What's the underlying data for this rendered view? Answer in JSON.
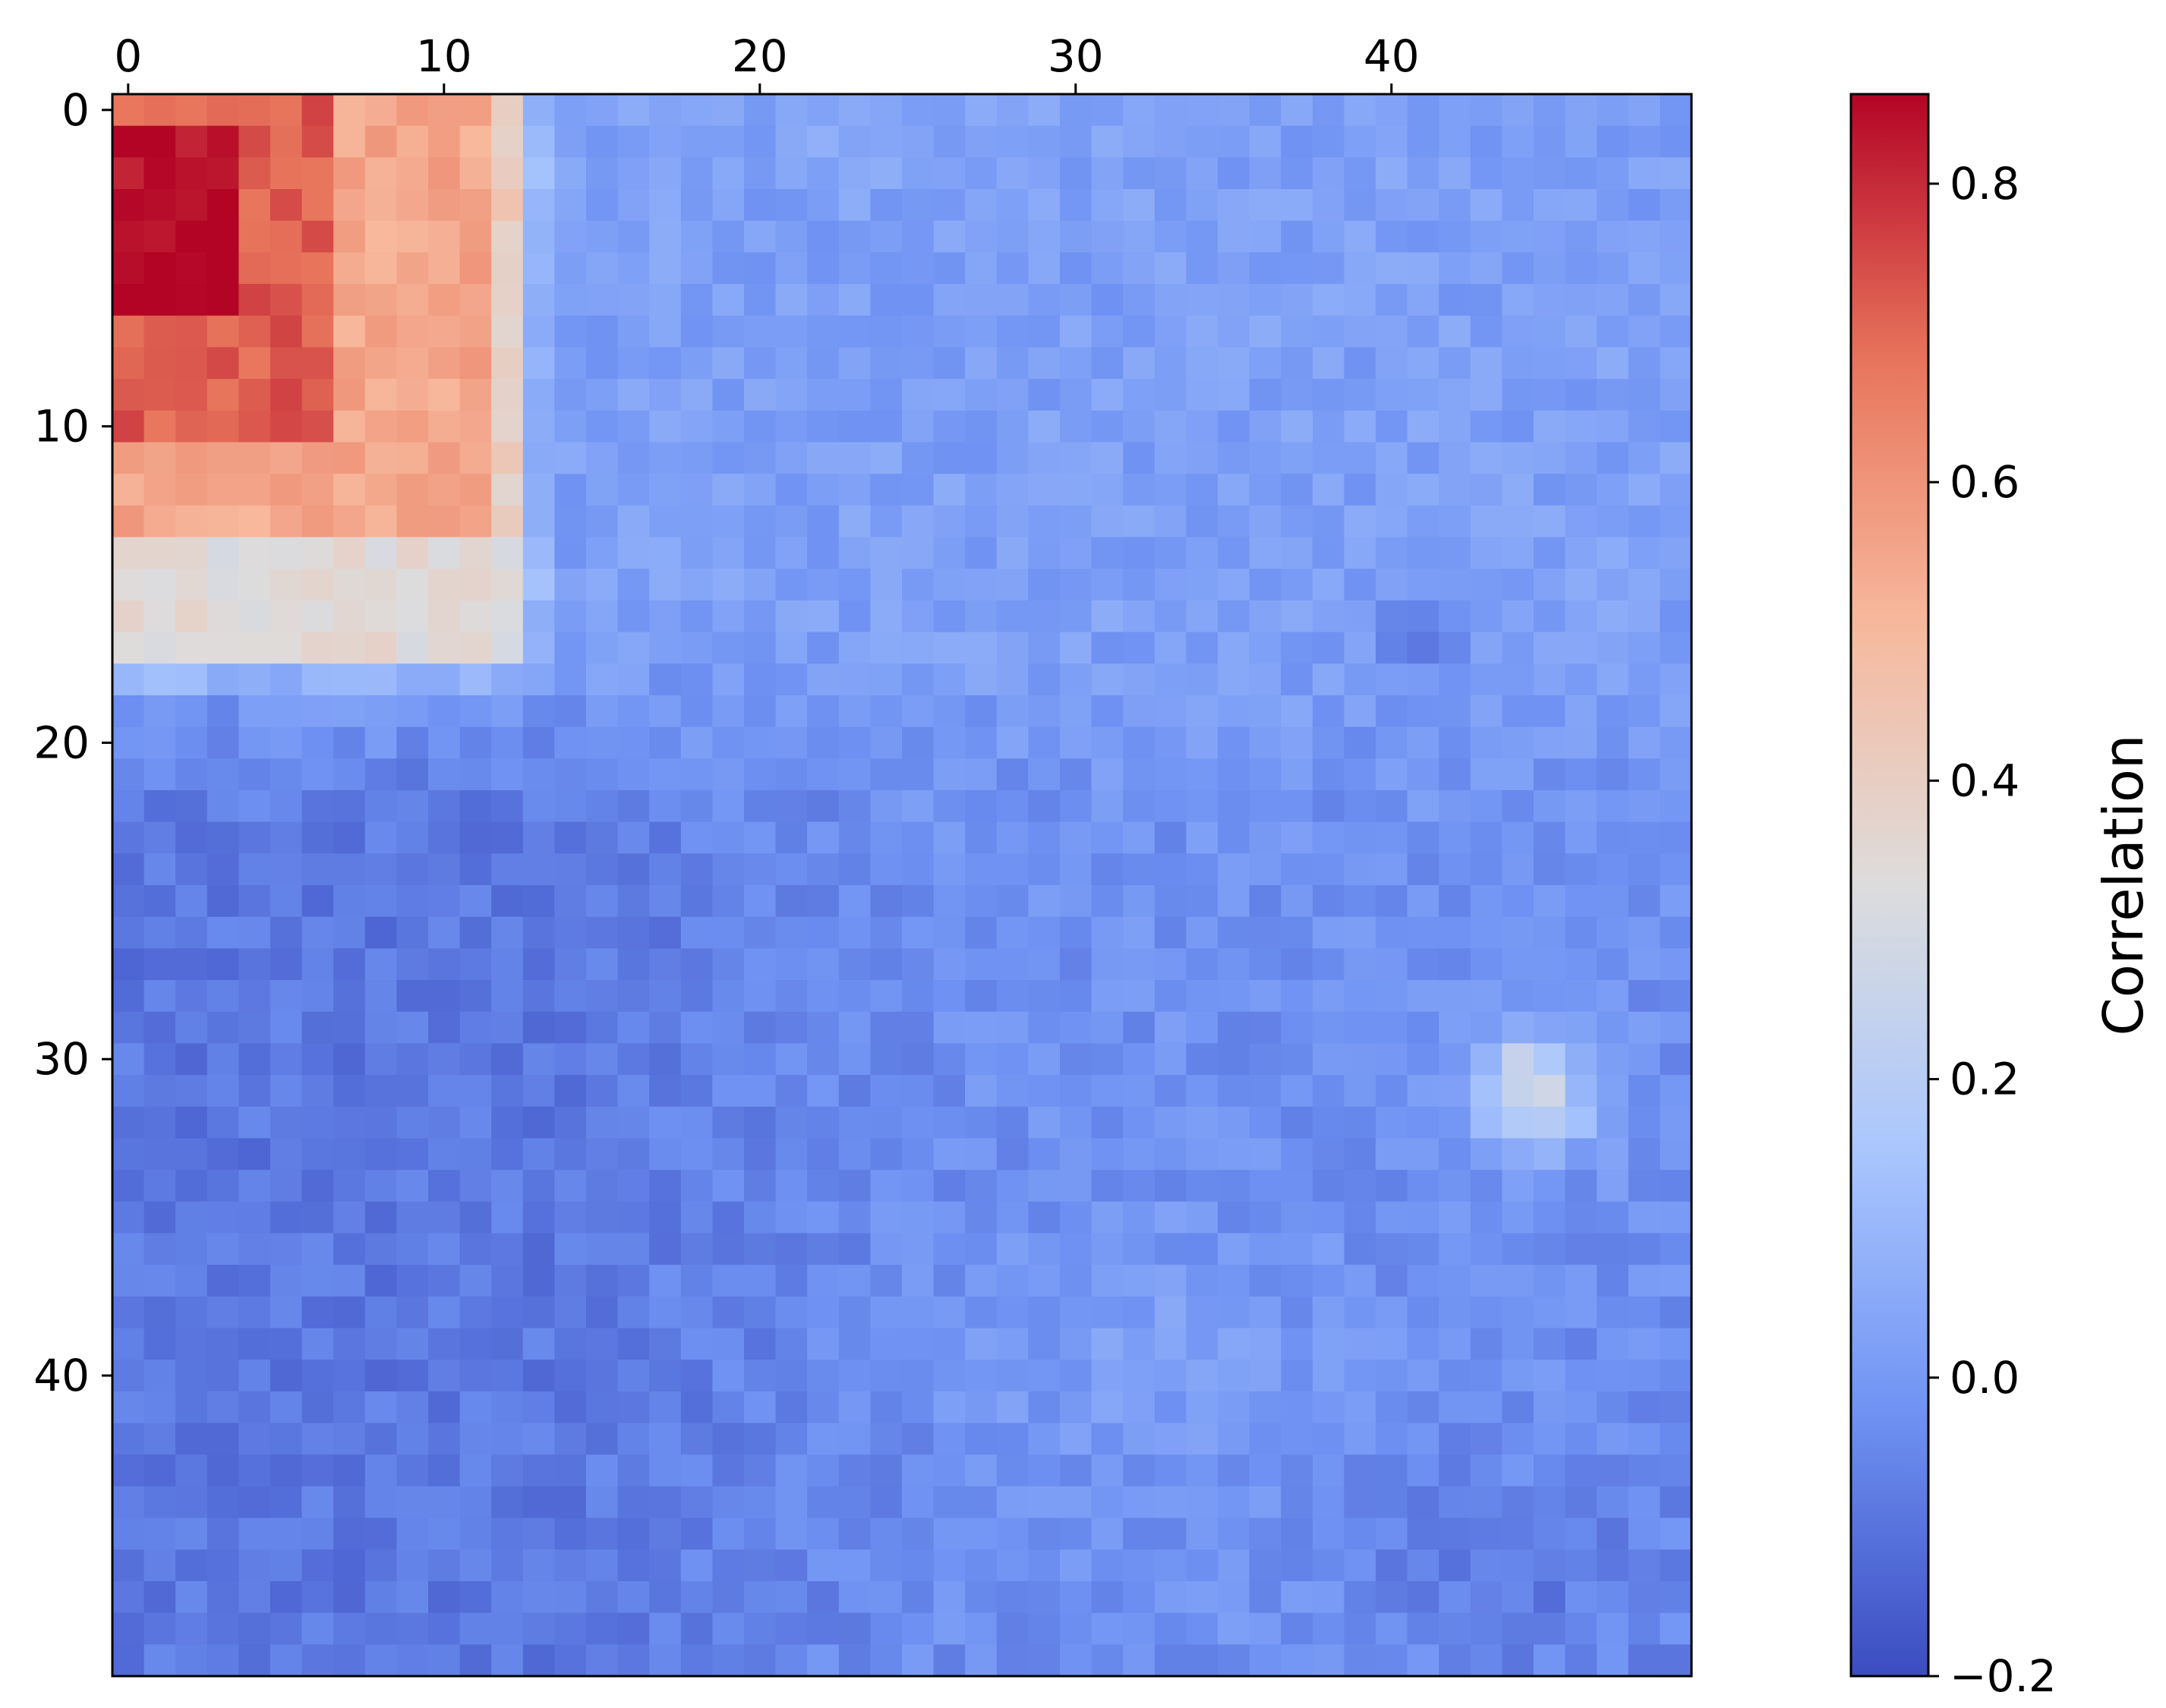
{
  "chart_data": {
    "type": "heatmap",
    "title": "",
    "xlabel": "",
    "ylabel": "",
    "x_axis_position": "top",
    "rows": 50,
    "cols": 50,
    "x_ticks": [
      0,
      10,
      20,
      30,
      40
    ],
    "x_tick_labels": [
      "0",
      "10",
      "20",
      "30",
      "40"
    ],
    "y_ticks": [
      0,
      10,
      20,
      30,
      40
    ],
    "y_tick_labels": [
      "0",
      "10",
      "20",
      "30",
      "40"
    ],
    "colormap": "coolwarm",
    "vmin": -0.2,
    "vmax": 0.86,
    "colorbar": {
      "label": "Correlation",
      "ticks": [
        -0.2,
        0.0,
        0.2,
        0.4,
        0.6,
        0.8
      ],
      "tick_labels": [
        "−0.2",
        "0.0",
        "0.2",
        "0.4",
        "0.6",
        "0.8"
      ]
    },
    "regions": [
      {
        "description": "strong positive block",
        "rows": [
          0,
          11
        ],
        "cols": [
          0,
          7
        ],
        "approx_value": 0.75
      },
      {
        "description": "moderate positive block",
        "rows": [
          0,
          13
        ],
        "cols": [
          5,
          13
        ],
        "approx_value": 0.55
      },
      {
        "description": "weak positive fringe",
        "rows": [
          12,
          18
        ],
        "cols": [
          0,
          11
        ],
        "approx_value": 0.32
      },
      {
        "description": "hot spot",
        "rows": [
          1,
          7
        ],
        "cols": [
          0,
          5
        ],
        "approx_value": 0.85
      },
      {
        "description": "local positive patch",
        "rows": [
          29,
          33
        ],
        "cols": [
          43,
          46
        ],
        "approx_value": 0.33
      },
      {
        "description": "negative lower-left region",
        "rows": [
          20,
          49
        ],
        "cols": [
          0,
          20
        ],
        "approx_value": -0.12
      },
      {
        "description": "near-zero background",
        "rows": [
          0,
          49
        ],
        "cols": [
          14,
          49
        ],
        "approx_value": 0.0
      }
    ]
  },
  "colors": {
    "cmap_stops": [
      "#3b4cc0",
      "#6f92f3",
      "#aac7fd",
      "#dddcdc",
      "#f7b89c",
      "#e7745b",
      "#b40426"
    ],
    "axis": "#000000",
    "background": "#ffffff"
  }
}
